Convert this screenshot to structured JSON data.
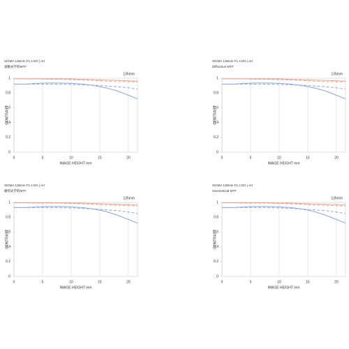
{
  "chart_data": [
    {
      "type": "line",
      "title": "SIGMA 135mm F1.4 DG | Art",
      "subtitle": "波動光学的MTF",
      "annotation": "135mm",
      "xlabel": "IMAGE HEIGHT  mm",
      "ylabel": "CONTRAST",
      "x": [
        0,
        2,
        4,
        6,
        8,
        10,
        12,
        14,
        16,
        18,
        20,
        21.6
      ],
      "series": [
        {
          "color": "#e3a592",
          "dash": false,
          "values": [
            0.99,
            0.99,
            0.99,
            0.99,
            0.99,
            0.99,
            0.985,
            0.98,
            0.975,
            0.97,
            0.965,
            0.96
          ]
        },
        {
          "color": "#e3a592",
          "dash": true,
          "values": [
            0.99,
            0.99,
            0.99,
            0.985,
            0.985,
            0.98,
            0.975,
            0.97,
            0.96,
            0.955,
            0.95,
            0.95
          ]
        },
        {
          "color": "#8ea6d6",
          "dash": false,
          "values": [
            0.92,
            0.92,
            0.93,
            0.935,
            0.935,
            0.93,
            0.92,
            0.9,
            0.87,
            0.83,
            0.77,
            0.72
          ]
        },
        {
          "color": "#8ea6d6",
          "dash": true,
          "values": [
            0.92,
            0.92,
            0.92,
            0.92,
            0.92,
            0.915,
            0.91,
            0.905,
            0.895,
            0.885,
            0.87,
            0.85
          ]
        }
      ],
      "xlim": [
        0,
        21.6
      ],
      "ylim": [
        0,
        1
      ],
      "xticks": [
        0,
        5,
        10,
        15,
        20
      ],
      "yticks": [
        0,
        0.2,
        0.4,
        0.6,
        0.8,
        1
      ]
    },
    {
      "type": "line",
      "title": "SIGMA 135mm F1.4 DG | Art",
      "subtitle": "Diffraction MTF",
      "annotation": "135mm",
      "xlabel": "IMAGE HEIGHT  mm",
      "ylabel": "CONTRAST",
      "x": [
        0,
        2,
        4,
        6,
        8,
        10,
        12,
        14,
        16,
        18,
        20,
        21.6
      ],
      "series": [
        {
          "color": "#e3a592",
          "dash": false,
          "values": [
            0.99,
            0.99,
            0.99,
            0.99,
            0.99,
            0.99,
            0.985,
            0.98,
            0.975,
            0.97,
            0.965,
            0.96
          ]
        },
        {
          "color": "#e3a592",
          "dash": true,
          "values": [
            0.99,
            0.99,
            0.99,
            0.985,
            0.985,
            0.98,
            0.975,
            0.97,
            0.96,
            0.955,
            0.95,
            0.95
          ]
        },
        {
          "color": "#8ea6d6",
          "dash": false,
          "values": [
            0.92,
            0.92,
            0.93,
            0.935,
            0.935,
            0.93,
            0.92,
            0.9,
            0.87,
            0.83,
            0.77,
            0.72
          ]
        },
        {
          "color": "#8ea6d6",
          "dash": true,
          "values": [
            0.92,
            0.92,
            0.92,
            0.92,
            0.92,
            0.915,
            0.91,
            0.905,
            0.895,
            0.885,
            0.87,
            0.85
          ]
        }
      ],
      "xlim": [
        0,
        21.6
      ],
      "ylim": [
        0,
        1
      ],
      "xticks": [
        0,
        5,
        10,
        15,
        20
      ],
      "yticks": [
        0,
        0.2,
        0.4,
        0.6,
        0.8,
        1
      ]
    },
    {
      "type": "line",
      "title": "SIGMA 135mm F1.4 DG | Art",
      "subtitle": "幾何光学的MTF",
      "annotation": "135mm",
      "xlabel": "IMAGE HEIGHT  mm",
      "ylabel": "CONTRAST",
      "x": [
        0,
        2,
        4,
        6,
        8,
        10,
        12,
        14,
        16,
        18,
        20,
        21.6
      ],
      "series": [
        {
          "color": "#e3a592",
          "dash": false,
          "values": [
            0.995,
            0.995,
            0.995,
            0.995,
            0.995,
            0.99,
            0.99,
            0.985,
            0.98,
            0.975,
            0.97,
            0.965
          ]
        },
        {
          "color": "#e3a592",
          "dash": true,
          "values": [
            0.995,
            0.995,
            0.99,
            0.99,
            0.99,
            0.985,
            0.98,
            0.975,
            0.965,
            0.96,
            0.955,
            0.95
          ]
        },
        {
          "color": "#8ea6d6",
          "dash": false,
          "values": [
            0.93,
            0.93,
            0.94,
            0.945,
            0.945,
            0.94,
            0.93,
            0.91,
            0.88,
            0.83,
            0.77,
            0.72
          ]
        },
        {
          "color": "#8ea6d6",
          "dash": true,
          "values": [
            0.93,
            0.93,
            0.93,
            0.93,
            0.93,
            0.925,
            0.92,
            0.91,
            0.9,
            0.89,
            0.87,
            0.85
          ]
        }
      ],
      "xlim": [
        0,
        21.6
      ],
      "ylim": [
        0,
        1
      ],
      "xticks": [
        0,
        5,
        10,
        15,
        20
      ],
      "yticks": [
        0,
        0.2,
        0.4,
        0.6,
        0.8,
        1
      ]
    },
    {
      "type": "line",
      "title": "SIGMA 135mm F1.4 DG | Art",
      "subtitle": "Geometrical MTF",
      "annotation": "135mm",
      "xlabel": "IMAGE HEIGHT  mm",
      "ylabel": "CONTRAST",
      "x": [
        0,
        2,
        4,
        6,
        8,
        10,
        12,
        14,
        16,
        18,
        20,
        21.6
      ],
      "series": [
        {
          "color": "#e3a592",
          "dash": false,
          "values": [
            0.995,
            0.995,
            0.995,
            0.995,
            0.995,
            0.99,
            0.99,
            0.985,
            0.98,
            0.975,
            0.97,
            0.965
          ]
        },
        {
          "color": "#e3a592",
          "dash": true,
          "values": [
            0.995,
            0.995,
            0.99,
            0.99,
            0.99,
            0.985,
            0.98,
            0.975,
            0.965,
            0.96,
            0.955,
            0.95
          ]
        },
        {
          "color": "#8ea6d6",
          "dash": false,
          "values": [
            0.93,
            0.93,
            0.94,
            0.945,
            0.945,
            0.94,
            0.93,
            0.91,
            0.88,
            0.83,
            0.77,
            0.72
          ]
        },
        {
          "color": "#8ea6d6",
          "dash": true,
          "values": [
            0.93,
            0.93,
            0.93,
            0.93,
            0.93,
            0.925,
            0.92,
            0.91,
            0.9,
            0.89,
            0.87,
            0.85
          ]
        }
      ],
      "xlim": [
        0,
        21.6
      ],
      "ylim": [
        0,
        1
      ],
      "xticks": [
        0,
        5,
        10,
        15,
        20
      ],
      "yticks": [
        0,
        0.2,
        0.4,
        0.6,
        0.8,
        1
      ]
    }
  ]
}
